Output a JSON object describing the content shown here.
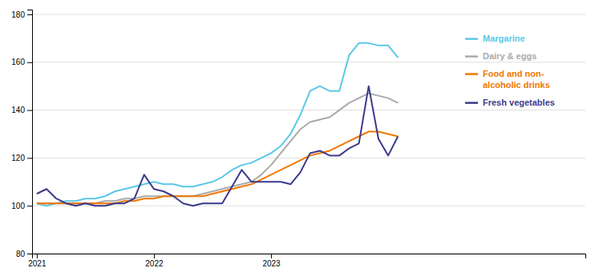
{
  "chart_data": {
    "type": "line",
    "x": [
      2021,
      2021.0833333333333,
      2021.1666666666667,
      2021.25,
      2021.3333333333333,
      2021.4166666666667,
      2021.5,
      2021.5833333333333,
      2021.6666666666667,
      2021.75,
      2021.8333333333333,
      2021.9166666666667,
      2022,
      2022.0833333333333,
      2022.1666666666667,
      2022.25,
      2022.3333333333333,
      2022.4166666666667,
      2022.5,
      2022.5833333333333,
      2022.6666666666667,
      2022.75,
      2022.8333333333333,
      2022.9166666666667,
      2023,
      2023.0833333333333,
      2023.1666666666667,
      2023.25,
      2023.3333333333333,
      2023.4166666666667,
      2023.5,
      2023.5833333333333,
      2023.6666666666667,
      2023.75,
      2023.8333333333333,
      2023.9166666666667,
      2024,
      2024.0833333333333
    ],
    "series": [
      {
        "name": "Margarine",
        "color": "#5BC8E8",
        "values": [
          101,
          100,
          101,
          102,
          102,
          103,
          103,
          104,
          106,
          107,
          108,
          109,
          110,
          109,
          109,
          108,
          108,
          109,
          110,
          112,
          115,
          117,
          118,
          120,
          122,
          125,
          130,
          138,
          148,
          150,
          148,
          148,
          163,
          168,
          168,
          167,
          167,
          162
        ]
      },
      {
        "name": "Dairy & eggs",
        "color": "#AAAAAA",
        "values": [
          101,
          101,
          101,
          101,
          101,
          101,
          101,
          102,
          102,
          103,
          103,
          104,
          104,
          104,
          104,
          104,
          104,
          105,
          106,
          107,
          108,
          109,
          110,
          113,
          117,
          122,
          127,
          132,
          135,
          136,
          137,
          140,
          143,
          145,
          147,
          146,
          145,
          143
        ]
      },
      {
        "name": "Food and non-\nalcoholic drinks",
        "color": "#F07800",
        "values": [
          101,
          101,
          101,
          101,
          101,
          101,
          101,
          101,
          101,
          102,
          102,
          103,
          103,
          104,
          104,
          104,
          104,
          104,
          105,
          106,
          107,
          108,
          109,
          111,
          113,
          115,
          117,
          119,
          121,
          122,
          123,
          125,
          127,
          129,
          131,
          131,
          130,
          129
        ]
      },
      {
        "name": "Fresh vegetables",
        "color": "#3A3A8C",
        "values": [
          105,
          107,
          103,
          101,
          100,
          101,
          100,
          100,
          101,
          101,
          103,
          113,
          107,
          106,
          104,
          101,
          100,
          101,
          101,
          101,
          108,
          115,
          110,
          110,
          110,
          110,
          109,
          114,
          122,
          123,
          121,
          121,
          124,
          126,
          150,
          128,
          121,
          129
        ]
      }
    ],
    "xlim": [
      2020.96,
      2025.6833333333334
    ],
    "xticks": [
      2021,
      2022,
      2023
    ],
    "ylim": [
      80,
      182
    ],
    "yticks": [
      80,
      100,
      120,
      140,
      160,
      180
    ],
    "grid": true,
    "legend": "right"
  }
}
